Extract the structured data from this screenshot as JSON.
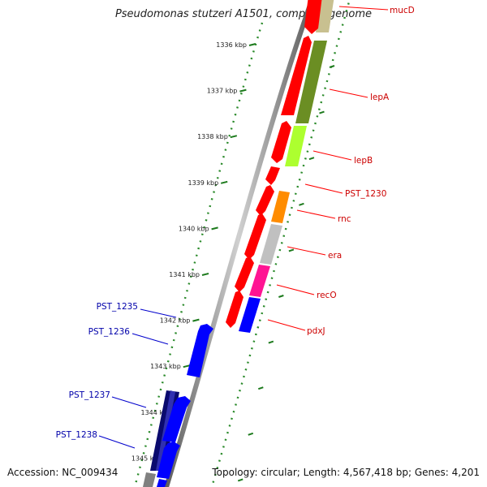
{
  "title": "Pseudomonas stutzeri A1501, complete genome",
  "footer": {
    "accession": "Accession: NC_009434",
    "summary": "Topology: circular; Length: 4,567,418 bp; Genes: 4,201"
  },
  "ruler": {
    "unit": "kbp",
    "ticks": [
      1336,
      1337,
      1338,
      1339,
      1340,
      1341,
      1342,
      1343,
      1344,
      1345
    ]
  },
  "colors": {
    "backbone": "#808080",
    "forward_cds": "#ff0000",
    "reverse_cds": "#0000ff",
    "label_forward": "#cc0000",
    "label_reverse": "#0000aa",
    "ruler_dots": "#2a8a2a",
    "ruler_ticks": "#1c7a1c"
  },
  "forward_genes": [
    {
      "label": "mucD",
      "cog_color": "#c8c090"
    },
    {
      "label": "lepA",
      "cog_color": "#6b8e23"
    },
    {
      "label": "lepB",
      "cog_color": "#adff2f"
    },
    {
      "label": "PST_1230",
      "cog_color": "#ffffff"
    },
    {
      "label": "rnc",
      "cog_color": "#ff8c00"
    },
    {
      "label": "era",
      "cog_color": "#c0c0c0"
    },
    {
      "label": "recO",
      "cog_color": "#ff1493"
    },
    {
      "label": "pdxJ",
      "cog_color": "#0000ff"
    }
  ],
  "reverse_genes": [
    {
      "label": "PST_1235"
    },
    {
      "label": "PST_1236"
    },
    {
      "label": "PST_1237"
    },
    {
      "label": "PST_1238"
    }
  ]
}
